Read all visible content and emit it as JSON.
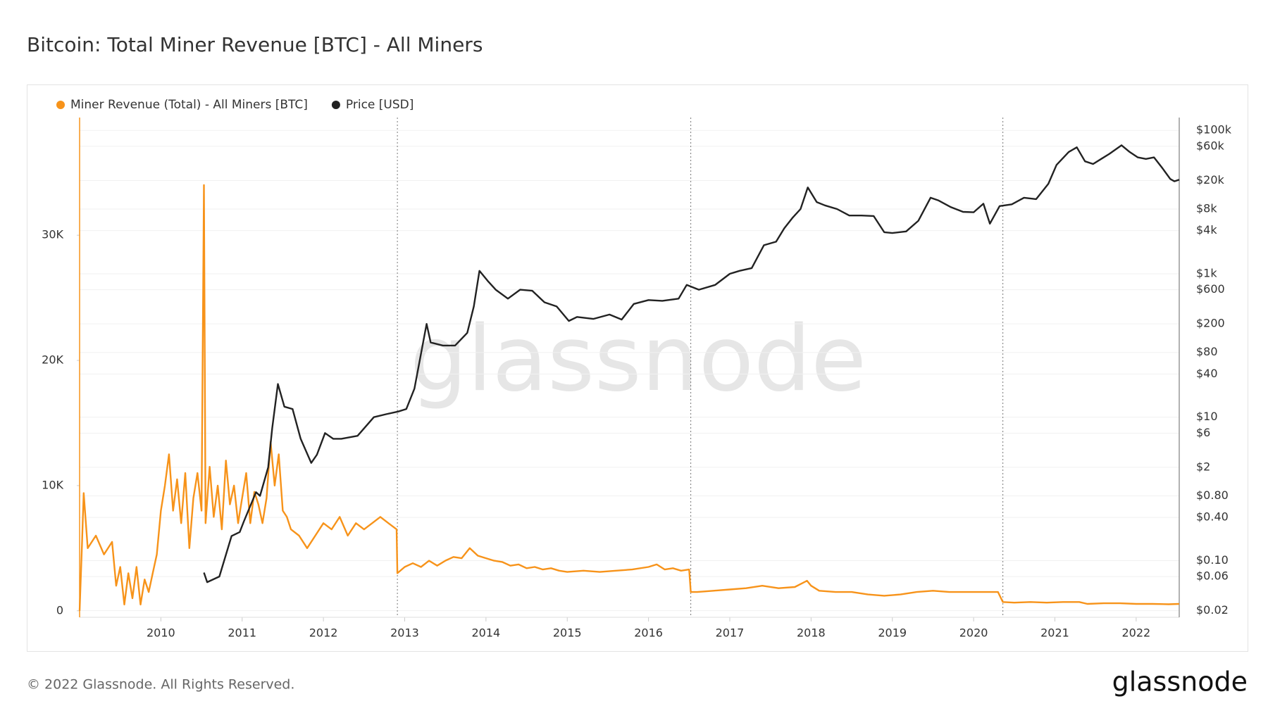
{
  "chart_data": {
    "type": "line",
    "title": "Bitcoin: Total Miner Revenue [BTC] - All Miners",
    "watermark": "glassnode",
    "footer": "© 2022 Glassnode. All Rights Reserved.",
    "logo": "glassnode",
    "grid": true,
    "y2log": true,
    "legend": "top-left",
    "xlim": [
      2009.0,
      2022.53
    ],
    "xticks": [
      2010,
      2011,
      2012,
      2013,
      2014,
      2015,
      2016,
      2017,
      2018,
      2019,
      2020,
      2021,
      2022
    ],
    "ylim": [
      -520,
      39400
    ],
    "yticks": [
      0,
      {
        "value": 10000,
        "label": "10K"
      },
      {
        "value": 20000,
        "label": "20K"
      },
      {
        "value": 30000,
        "label": "30K"
      }
    ],
    "y2lim": [
      0.0162,
      151000
    ],
    "y2ticks": [
      {
        "value": 100000,
        "label": "$100k"
      },
      {
        "value": 60000,
        "label": "$60k"
      },
      {
        "value": 20000,
        "label": "$20k"
      },
      {
        "value": 8000,
        "label": "$8k"
      },
      {
        "value": 4000,
        "label": "$4k"
      },
      {
        "value": 1000,
        "label": "$1k"
      },
      {
        "value": 600,
        "label": "$600"
      },
      {
        "value": 200,
        "label": "$200"
      },
      {
        "value": 80,
        "label": "$80"
      },
      {
        "value": 40,
        "label": "$40"
      },
      {
        "value": 10,
        "label": "$10"
      },
      {
        "value": 6,
        "label": "$6"
      },
      {
        "value": 2,
        "label": "$2"
      },
      {
        "value": 0.8,
        "label": "$0.80"
      },
      {
        "value": 0.4,
        "label": "$0.40"
      },
      {
        "value": 0.1,
        "label": "$0.10"
      },
      {
        "value": 0.06,
        "label": "$0.06"
      },
      {
        "value": 0.02,
        "label": "$0.02"
      }
    ],
    "halving_lines": [
      2012.91,
      2016.52,
      2020.36
    ],
    "series": [
      {
        "name": "Miner Revenue (Total) - All Miners [BTC]",
        "color": "#f7931a",
        "axis": "y",
        "x": [
          2009.0,
          2009.03,
          2009.05,
          2009.1,
          2009.2,
          2009.3,
          2009.4,
          2009.45,
          2009.5,
          2009.55,
          2009.6,
          2009.65,
          2009.7,
          2009.75,
          2009.8,
          2009.85,
          2009.9,
          2009.95,
          2010.0,
          2010.05,
          2010.1,
          2010.15,
          2010.2,
          2010.25,
          2010.3,
          2010.35,
          2010.4,
          2010.45,
          2010.5,
          2010.53,
          2010.55,
          2010.6,
          2010.65,
          2010.7,
          2010.75,
          2010.8,
          2010.85,
          2010.9,
          2010.95,
          2011.0,
          2011.05,
          2011.1,
          2011.15,
          2011.2,
          2011.25,
          2011.3,
          2011.35,
          2011.4,
          2011.45,
          2011.5,
          2011.55,
          2011.6,
          2011.7,
          2011.8,
          2011.9,
          2012.0,
          2012.1,
          2012.2,
          2012.3,
          2012.4,
          2012.5,
          2012.6,
          2012.7,
          2012.8,
          2012.9,
          2012.91,
          2013.0,
          2013.1,
          2013.2,
          2013.3,
          2013.4,
          2013.5,
          2013.6,
          2013.7,
          2013.8,
          2013.9,
          2014.0,
          2014.1,
          2014.2,
          2014.3,
          2014.4,
          2014.5,
          2014.6,
          2014.7,
          2014.8,
          2014.9,
          2015.0,
          2015.2,
          2015.4,
          2015.6,
          2015.8,
          2016.0,
          2016.1,
          2016.2,
          2016.3,
          2016.4,
          2016.5,
          2016.52,
          2016.6,
          2016.8,
          2017.0,
          2017.2,
          2017.4,
          2017.6,
          2017.8,
          2017.95,
          2018.0,
          2018.1,
          2018.3,
          2018.5,
          2018.7,
          2018.9,
          2019.1,
          2019.3,
          2019.5,
          2019.7,
          2019.9,
          2020.1,
          2020.3,
          2020.36,
          2020.5,
          2020.7,
          2020.9,
          2021.1,
          2021.3,
          2021.4,
          2021.6,
          2021.8,
          2022.0,
          2022.2,
          2022.4,
          2022.53
        ],
        "values": [
          0,
          5500,
          9400,
          5000,
          6000,
          4500,
          5500,
          2000,
          3500,
          500,
          3000,
          1000,
          3500,
          500,
          2500,
          1500,
          3000,
          4500,
          8000,
          10000,
          12500,
          8000,
          10500,
          7000,
          11000,
          5000,
          9000,
          11000,
          8000,
          34000,
          7000,
          11500,
          7500,
          10000,
          6500,
          12000,
          8500,
          10000,
          7000,
          9000,
          11000,
          7000,
          9500,
          8500,
          7000,
          9000,
          13500,
          10000,
          12500,
          8000,
          7500,
          6500,
          6000,
          5000,
          6000,
          7000,
          6500,
          7500,
          6000,
          7000,
          6500,
          7000,
          7500,
          7000,
          6500,
          3000,
          3500,
          3800,
          3500,
          4000,
          3600,
          4000,
          4300,
          4200,
          5000,
          4400,
          4200,
          4000,
          3900,
          3600,
          3700,
          3400,
          3500,
          3300,
          3400,
          3200,
          3100,
          3200,
          3100,
          3200,
          3300,
          3500,
          3700,
          3300,
          3400,
          3200,
          3300,
          1500,
          1500,
          1600,
          1700,
          1800,
          2000,
          1800,
          1900,
          2400,
          2000,
          1600,
          1500,
          1500,
          1300,
          1200,
          1300,
          1500,
          1600,
          1500,
          1500,
          1500,
          1500,
          700,
          650,
          700,
          650,
          700,
          700,
          550,
          600,
          600,
          550,
          550,
          520,
          550
        ]
      },
      {
        "name": "Price [USD]",
        "color": "#222222",
        "axis": "y2",
        "x": [
          2010.53,
          2010.57,
          2010.72,
          2010.87,
          2010.97,
          2011.02,
          2011.17,
          2011.22,
          2011.32,
          2011.37,
          2011.44,
          2011.52,
          2011.62,
          2011.72,
          2011.85,
          2011.92,
          2012.02,
          2012.12,
          2012.22,
          2012.42,
          2012.62,
          2012.77,
          2012.92,
          2013.02,
          2013.12,
          2013.27,
          2013.32,
          2013.47,
          2013.62,
          2013.77,
          2013.85,
          2013.92,
          2014.02,
          2014.12,
          2014.27,
          2014.42,
          2014.57,
          2014.72,
          2014.87,
          2015.02,
          2015.12,
          2015.32,
          2015.52,
          2015.67,
          2015.82,
          2016.0,
          2016.17,
          2016.37,
          2016.47,
          2016.62,
          2016.82,
          2017.0,
          2017.12,
          2017.27,
          2017.42,
          2017.57,
          2017.67,
          2017.77,
          2017.87,
          2017.96,
          2018.07,
          2018.17,
          2018.32,
          2018.47,
          2018.62,
          2018.77,
          2018.9,
          2019.0,
          2019.17,
          2019.32,
          2019.47,
          2019.57,
          2019.72,
          2019.87,
          2020.0,
          2020.12,
          2020.2,
          2020.32,
          2020.47,
          2020.62,
          2020.77,
          2020.92,
          2021.02,
          2021.17,
          2021.27,
          2021.37,
          2021.47,
          2021.57,
          2021.67,
          2021.82,
          2021.92,
          2022.02,
          2022.12,
          2022.22,
          2022.32,
          2022.42,
          2022.47,
          2022.53
        ],
        "values": [
          0.068,
          0.05,
          0.06,
          0.22,
          0.25,
          0.35,
          0.9,
          0.8,
          2,
          7,
          29,
          14,
          13,
          5,
          2.3,
          3,
          6,
          5,
          5,
          5.5,
          10,
          11,
          12,
          13,
          25,
          200,
          110,
          100,
          100,
          150,
          350,
          1100,
          800,
          600,
          450,
          600,
          580,
          400,
          350,
          220,
          250,
          235,
          270,
          230,
          380,
          430,
          420,
          450,
          700,
          600,
          700,
          1000,
          1100,
          1200,
          2500,
          2800,
          4300,
          6000,
          8000,
          16000,
          10000,
          9000,
          8000,
          6500,
          6500,
          6400,
          3800,
          3700,
          3900,
          5500,
          11500,
          10500,
          8500,
          7300,
          7200,
          9500,
          5000,
          8800,
          9300,
          11500,
          11000,
          18000,
          33000,
          50000,
          58000,
          37000,
          34000,
          40000,
          47000,
          62000,
          50000,
          42000,
          40000,
          42000,
          30000,
          21000,
          19500,
          20500
        ]
      }
    ]
  }
}
